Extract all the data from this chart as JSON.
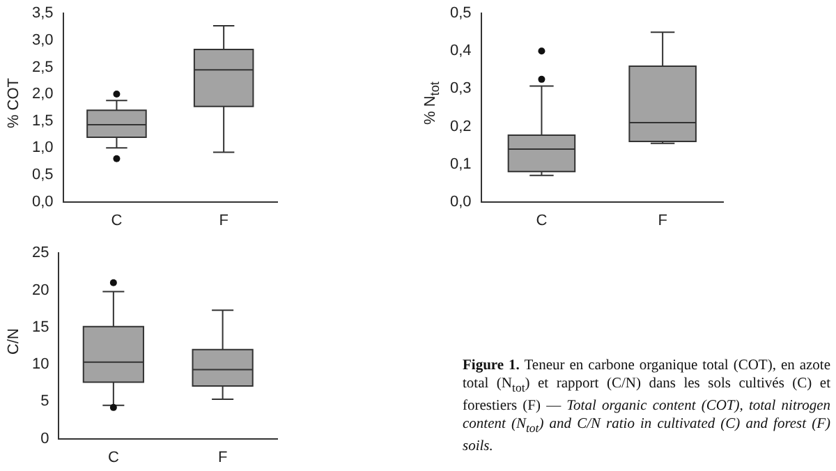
{
  "chart_data": [
    {
      "type": "box",
      "ylabel": "% COT",
      "categories": [
        "C",
        "F"
      ],
      "ylim": [
        0,
        3.5
      ],
      "yticks": [
        {
          "value": 0,
          "label": "0,0"
        },
        {
          "value": 0.5,
          "label": "0,5"
        },
        {
          "value": 1,
          "label": "1,0"
        },
        {
          "value": 1.5,
          "label": "1,5"
        },
        {
          "value": 2,
          "label": "2,0"
        },
        {
          "value": 2.5,
          "label": "2,5"
        },
        {
          "value": 3,
          "label": "3,0"
        },
        {
          "value": 3.5,
          "label": "3,5"
        }
      ],
      "grid": false,
      "legend": false,
      "series": [
        {
          "color": "#a3a3a3",
          "boxes": [
            {
              "low": 1.0,
              "q1": 1.2,
              "median": 1.43,
              "q3": 1.7,
              "high": 1.88,
              "outliers": [
                2.0,
                0.8
              ]
            },
            {
              "low": 0.92,
              "q1": 1.77,
              "median": 2.45,
              "q3": 2.83,
              "high": 3.27
            }
          ]
        }
      ]
    },
    {
      "type": "box",
      "ylabel": "% N$_{tot}$",
      "categories": [
        "C",
        "F"
      ],
      "ylim": [
        0,
        0.5
      ],
      "yticks": [
        {
          "value": 0,
          "label": "0,0"
        },
        {
          "value": 0.1,
          "label": "0,1"
        },
        {
          "value": 0.2,
          "label": "0,2"
        },
        {
          "value": 0.3,
          "label": "0,3"
        },
        {
          "value": 0.4,
          "label": "0,4"
        },
        {
          "value": 0.5,
          "label": "0,5"
        }
      ],
      "grid": false,
      "legend": false,
      "series": [
        {
          "color": "#a3a3a3",
          "boxes": [
            {
              "low": 0.07,
              "q1": 0.08,
              "median": 0.14,
              "q3": 0.177,
              "high": 0.307,
              "outliers": [
                0.325,
                0.4
              ]
            },
            {
              "low": 0.155,
              "q1": 0.16,
              "median": 0.21,
              "q3": 0.36,
              "high": 0.45
            }
          ]
        }
      ]
    },
    {
      "type": "box",
      "ylabel": "C/N",
      "categories": [
        "C",
        "F"
      ],
      "ylim": [
        0,
        25
      ],
      "yticks": [
        0,
        5,
        10,
        15,
        20,
        25
      ],
      "grid": false,
      "legend": false,
      "series": [
        {
          "color": "#a3a3a3",
          "boxes": [
            {
              "low": 4.5,
              "q1": 7.6,
              "median": 10.3,
              "q3": 15.1,
              "high": 19.8,
              "outliers": [
                21,
                4.2
              ]
            },
            {
              "low": 5.3,
              "q1": 7.1,
              "median": 9.3,
              "q3": 12,
              "high": 17.3
            }
          ]
        }
      ]
    },
    {
      "type": "other",
      "annotations": [
        "Figure 1.",
        "Teneur en carbone organique total (COT), en azote total (N$_{tot}$) et rapport (C/N) dans les sols cultivés (C) et forestiers (F) —",
        "Total organic content (COT), total nitrogen content (N$_{tot}$) and C/N ratio in cultivated (C) and forest (F) soils."
      ]
    }
  ]
}
